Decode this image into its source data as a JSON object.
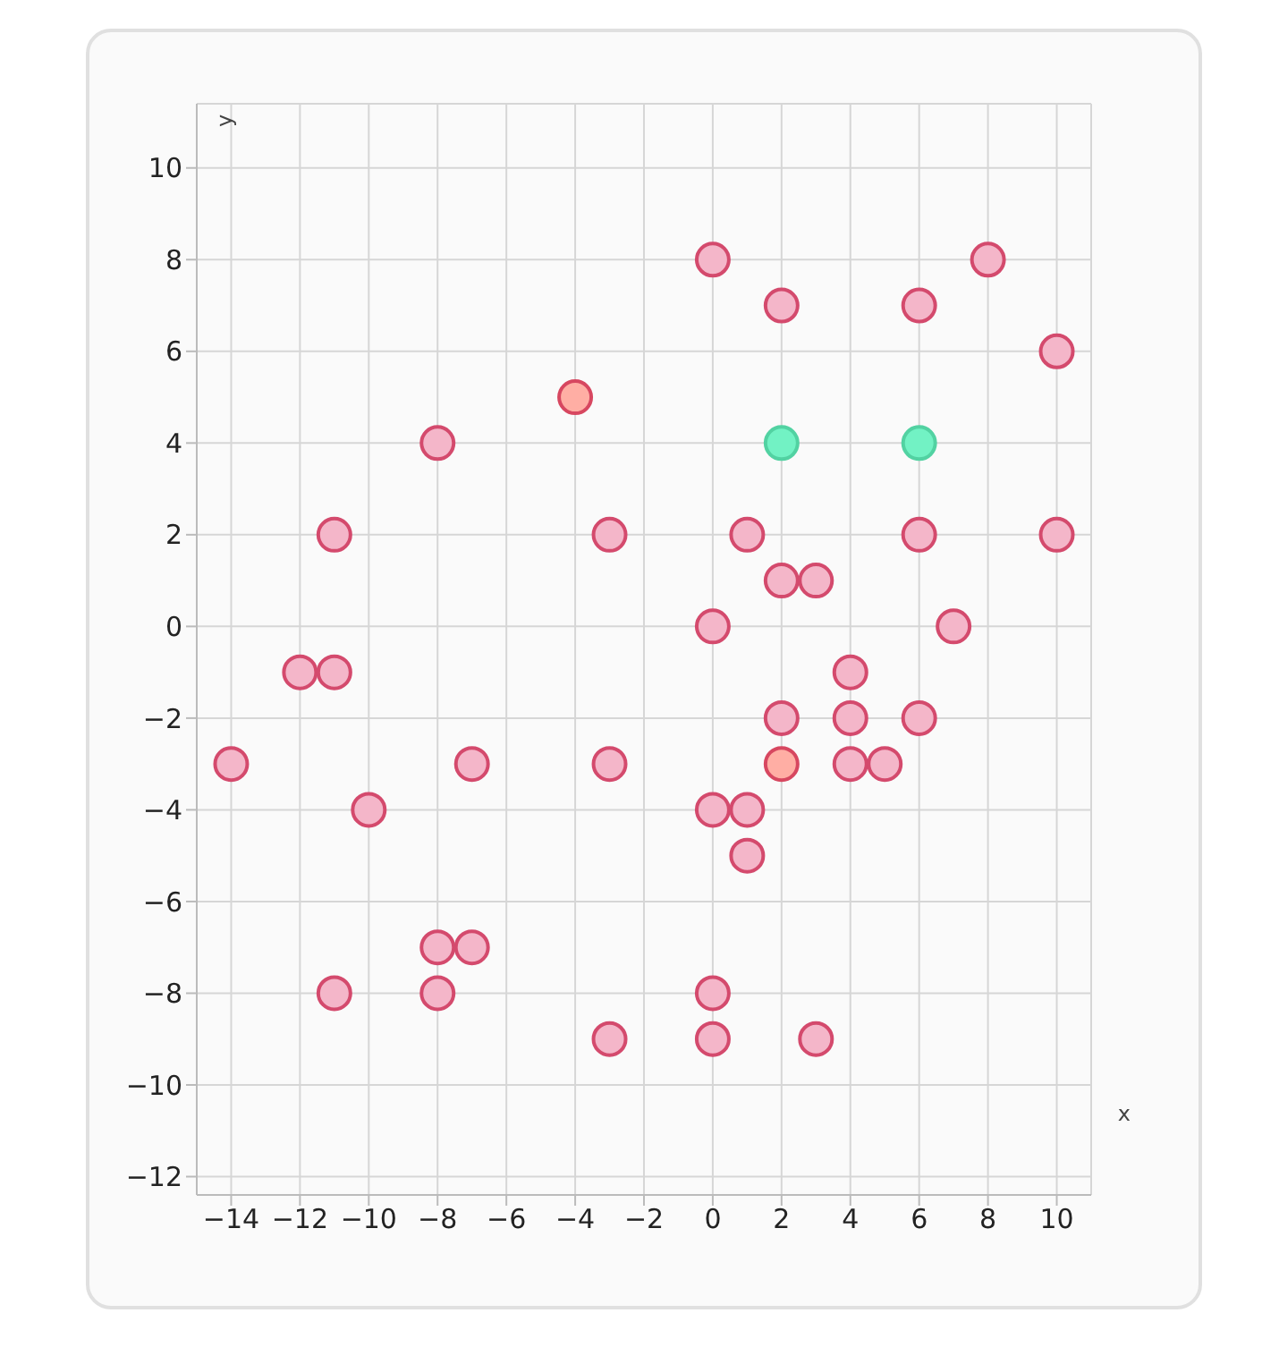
{
  "chart_data": {
    "type": "scatter",
    "xlabel": "x",
    "ylabel": "y",
    "xlim": [
      -15,
      11
    ],
    "ylim": [
      -12.4,
      11.4
    ],
    "xticks": [
      -14,
      -12,
      -10,
      -8,
      -6,
      -4,
      -2,
      0,
      2,
      4,
      6,
      8,
      10
    ],
    "yticks": [
      -12,
      -10,
      -8,
      -6,
      -4,
      -2,
      0,
      2,
      4,
      6,
      8,
      10
    ],
    "grid": true,
    "legend": false,
    "marker": "circle",
    "series": [
      {
        "color": "#f4b6c9",
        "x": [
          0,
          2,
          6,
          8,
          10,
          -8,
          -11,
          -3,
          1,
          6,
          10,
          2,
          3,
          0,
          7,
          -12,
          -11,
          4,
          2,
          4,
          6,
          -14,
          -7,
          -3,
          4,
          5,
          -10,
          0,
          1,
          1,
          -8,
          -7,
          -11,
          -8,
          0,
          -3,
          0,
          3
        ],
        "values": [
          8,
          7,
          7,
          8,
          6,
          4,
          2,
          2,
          2,
          2,
          2,
          1,
          1,
          0,
          0,
          -1,
          -1,
          -1,
          -2,
          -2,
          -2,
          -3,
          -3,
          -3,
          -3,
          -3,
          -4,
          -4,
          -4,
          -5,
          -7,
          -7,
          -8,
          -8,
          -8,
          -9,
          -9,
          -9
        ]
      },
      {
        "color": "#72f2c4",
        "x": [
          2,
          6
        ],
        "values": [
          4,
          4
        ]
      },
      {
        "color": "#ffaea4",
        "x": [
          -4,
          2
        ],
        "values": [
          5,
          -3
        ]
      }
    ]
  }
}
